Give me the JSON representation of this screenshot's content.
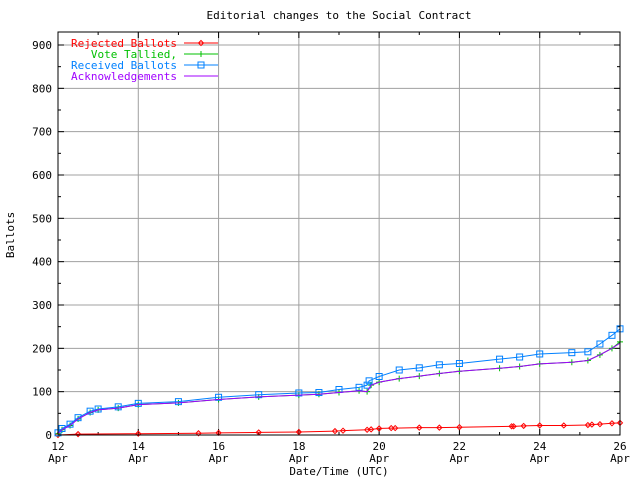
{
  "chart_data": {
    "type": "line",
    "title": "Editorial changes to the Social Contract",
    "xlabel": "Date/Time (UTC)",
    "ylabel": "Ballots",
    "xlim": [
      12,
      26
    ],
    "ylim": [
      0,
      930
    ],
    "grid": true,
    "legend_placement": "top-left",
    "x_ticks": [
      {
        "value": 12,
        "label": "12",
        "sub": "Apr"
      },
      {
        "value": 14,
        "label": "14",
        "sub": "Apr"
      },
      {
        "value": 16,
        "label": "16",
        "sub": "Apr"
      },
      {
        "value": 18,
        "label": "18",
        "sub": "Apr"
      },
      {
        "value": 20,
        "label": "20",
        "sub": "Apr"
      },
      {
        "value": 22,
        "label": "22",
        "sub": "Apr"
      },
      {
        "value": 24,
        "label": "24",
        "sub": "Apr"
      },
      {
        "value": 26,
        "label": "26",
        "sub": "Apr"
      }
    ],
    "y_ticks": [
      0,
      100,
      200,
      300,
      400,
      500,
      600,
      700,
      800,
      900
    ],
    "series": [
      {
        "name": "Rejected Ballots",
        "color": "#ff0000",
        "marker": "diamond",
        "x": [
          12,
          12.5,
          14,
          15.5,
          16,
          17,
          18,
          18.9,
          19.1,
          19.7,
          19.8,
          20,
          20.3,
          20.4,
          21,
          21.5,
          22,
          23.3,
          23.35,
          23.6,
          24,
          24.6,
          25.2,
          25.3,
          25.5,
          25.8,
          26
        ],
        "y": [
          0,
          2,
          3,
          4,
          5,
          6,
          7,
          9,
          10,
          12,
          13,
          15,
          16,
          16,
          17,
          17,
          18,
          20,
          20,
          21,
          22,
          22,
          23,
          24,
          25,
          27,
          28
        ]
      },
      {
        "name": "Vote Tallied,",
        "color": "#00c000",
        "marker": "plus",
        "x": [
          12,
          12.1,
          12.3,
          12.5,
          12.8,
          13,
          13.5,
          14,
          15,
          16,
          17,
          18,
          18.5,
          19,
          19.5,
          19.7,
          19.8,
          20,
          20.5,
          21,
          21.5,
          22,
          23,
          23.5,
          24,
          24.8,
          25.2,
          25.5,
          25.8,
          26
        ],
        "y": [
          3,
          12,
          22,
          37,
          52,
          58,
          62,
          70,
          74,
          82,
          88,
          92,
          94,
          98,
          102,
          100,
          115,
          122,
          130,
          136,
          142,
          147,
          154,
          158,
          164,
          168,
          172,
          185,
          200,
          215
        ]
      },
      {
        "name": "Received Ballots",
        "color": "#0080ff",
        "marker": "square",
        "x": [
          12,
          12.1,
          12.3,
          12.5,
          12.8,
          13,
          13.5,
          14,
          15,
          16,
          17,
          18,
          18.5,
          19,
          19.5,
          19.7,
          19.75,
          20,
          20.5,
          21,
          21.5,
          22,
          23,
          23.5,
          24,
          24.8,
          25.2,
          25.5,
          25.8,
          26
        ],
        "y": [
          5,
          15,
          25,
          40,
          55,
          60,
          65,
          73,
          77,
          87,
          93,
          97,
          98,
          105,
          110,
          115,
          125,
          135,
          150,
          155,
          162,
          165,
          175,
          180,
          187,
          190,
          192,
          210,
          230,
          245
        ]
      },
      {
        "name": "Acknowledgements",
        "color": "#a000ff",
        "marker": "none",
        "x": [
          12,
          12.1,
          12.3,
          12.5,
          12.8,
          13,
          13.5,
          14,
          15,
          16,
          17,
          18,
          18.5,
          19,
          19.5,
          19.7,
          19.8,
          20,
          20.5,
          21,
          21.5,
          22,
          23,
          23.5,
          24,
          24.8,
          25.2,
          25.5,
          25.8,
          26
        ],
        "y": [
          3,
          12,
          22,
          37,
          52,
          58,
          62,
          70,
          74,
          82,
          88,
          92,
          94,
          98,
          102,
          100,
          115,
          122,
          130,
          136,
          142,
          147,
          154,
          158,
          164,
          168,
          172,
          185,
          200,
          212
        ]
      }
    ]
  }
}
